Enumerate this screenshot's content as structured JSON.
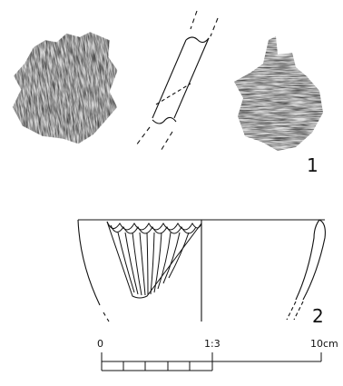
{
  "figures": [
    {
      "label": "1"
    },
    {
      "label": "2"
    }
  ],
  "scale_bar": {
    "start_label": "0",
    "ratio_label": "1:3",
    "end_label": "10cm",
    "segments": 5
  },
  "colors": {
    "ink": "#111111",
    "sherd_texture": "#2a2a2a"
  }
}
